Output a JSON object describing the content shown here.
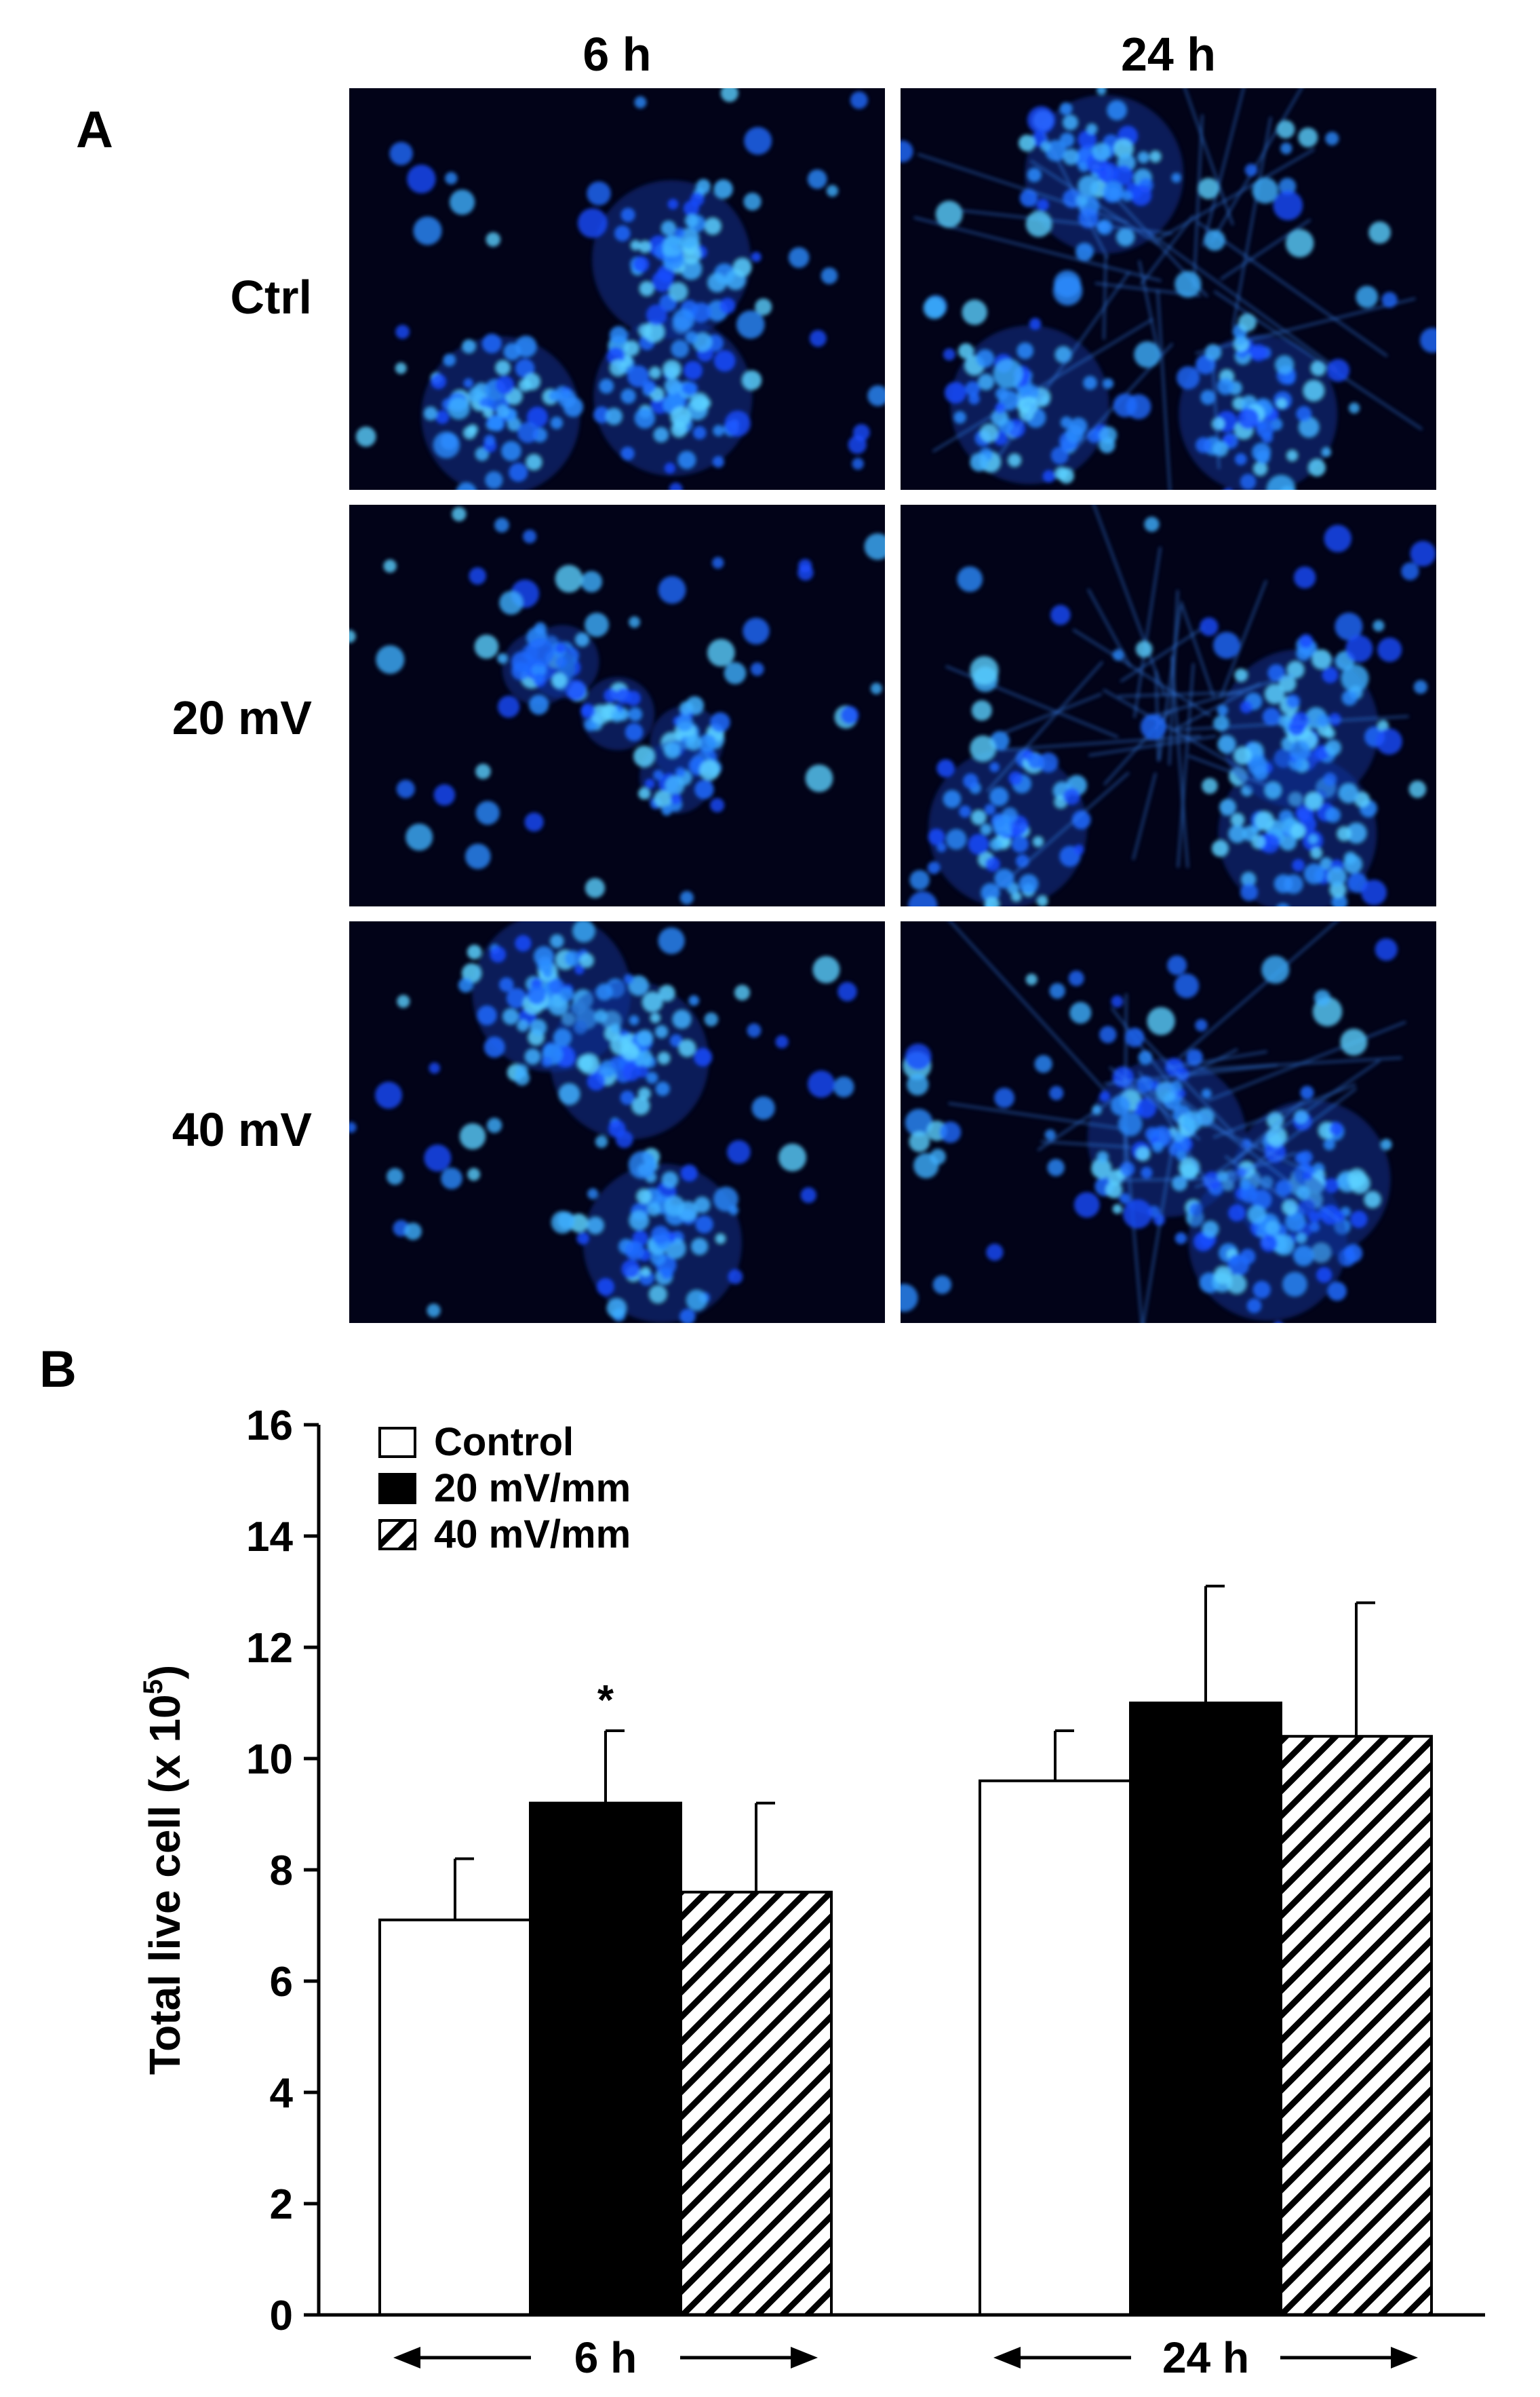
{
  "panel_a": {
    "letter": "A",
    "columns": [
      "6 h",
      "24 h"
    ],
    "rows": [
      "Ctrl",
      "20 mV",
      "40 mV"
    ],
    "image_description_color": "#1a4cff"
  },
  "panel_b": {
    "letter": "B"
  },
  "chart_data": {
    "type": "bar",
    "categories": [
      "6 h",
      "24 h"
    ],
    "series": [
      {
        "name": "Control",
        "values": [
          7.1,
          9.6
        ],
        "errors": [
          1.1,
          0.9
        ],
        "fill": "white"
      },
      {
        "name": "20 mV/mm",
        "values": [
          9.2,
          11.0
        ],
        "errors": [
          1.3,
          2.1
        ],
        "fill": "black"
      },
      {
        "name": "40 mV/mm",
        "values": [
          7.6,
          10.4
        ],
        "errors": [
          1.6,
          2.4
        ],
        "fill": "hatch"
      }
    ],
    "annotations": [
      {
        "text": "*",
        "category": "6 h",
        "series": "20 mV/mm"
      }
    ],
    "ylabel": "Total live cell (x 10",
    "ylabel_sup": "5",
    "ylabel_close": ")",
    "ylim": [
      0,
      16
    ],
    "yticks": [
      0,
      2,
      4,
      6,
      8,
      10,
      12,
      14,
      16
    ],
    "legend_position": "top-left",
    "grid": false
  }
}
